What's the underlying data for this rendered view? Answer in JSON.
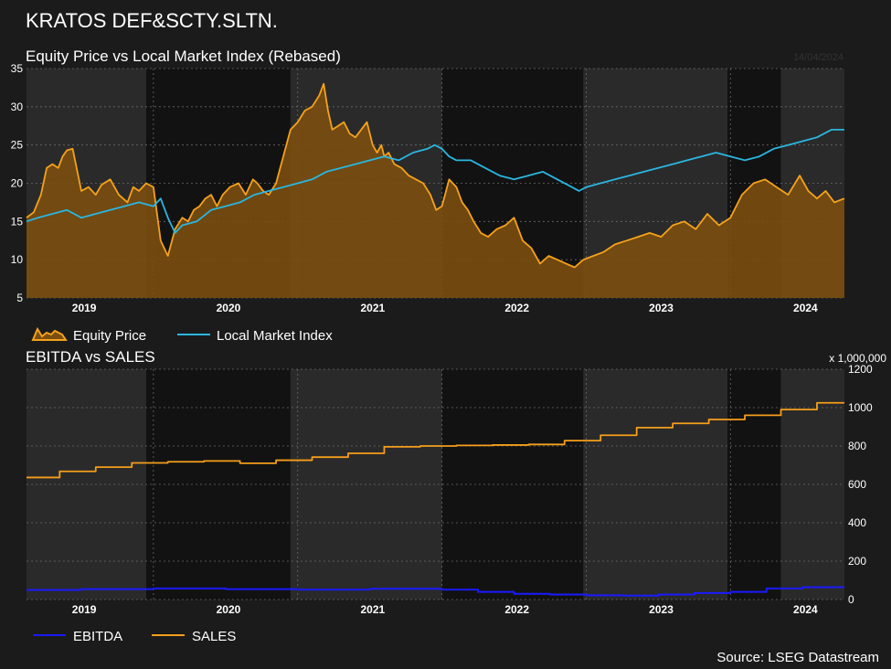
{
  "header": {
    "title": "KRATOS DEF&SCTY.SLTN.",
    "source": "Source: LSEG Datastream"
  },
  "colors": {
    "background": "#1b1b1b",
    "plot_dark": "#121212",
    "plot_light": "#2a2a2a",
    "equity_line": "#f5a21b",
    "equity_fill": "#7a4e10",
    "index_line": "#2ab6e0",
    "ebitda": "#1a1aff",
    "sales": "#f59e1b",
    "grid": "#6a6a6a"
  },
  "chart_data": [
    {
      "type": "area",
      "title": "Equity Price vs Local Market Index (Rebased)",
      "date_label": "14/04/2024",
      "ylim": [
        5,
        35
      ],
      "yticks": [
        5,
        10,
        15,
        20,
        25,
        30,
        35
      ],
      "xlim": [
        2018.62,
        2024.29
      ],
      "xticks": [
        {
          "label": "2019",
          "x": 2019.0
        },
        {
          "label": "2020",
          "x": 2020.0
        },
        {
          "label": "2021",
          "x": 2021.0
        },
        {
          "label": "2022",
          "x": 2022.0
        },
        {
          "label": "2023",
          "x": 2023.0
        },
        {
          "label": "2024",
          "x": 2024.0
        }
      ],
      "legend": [
        "Equity Price",
        "Local Market Index"
      ],
      "series": [
        {
          "name": "Equity Price",
          "x": [
            2018.62,
            2018.67,
            2018.72,
            2018.76,
            2018.8,
            2018.84,
            2018.87,
            2018.9,
            2018.94,
            2019.0,
            2019.05,
            2019.1,
            2019.14,
            2019.2,
            2019.26,
            2019.32,
            2019.36,
            2019.4,
            2019.45,
            2019.5,
            2019.55,
            2019.6,
            2019.65,
            2019.7,
            2019.74,
            2019.78,
            2019.82,
            2019.86,
            2019.9,
            2019.94,
            2019.98,
            2020.03,
            2020.09,
            2020.14,
            2020.19,
            2020.22,
            2020.26,
            2020.3,
            2020.35,
            2020.4,
            2020.45,
            2020.5,
            2020.55,
            2020.6,
            2020.65,
            2020.68,
            2020.71,
            2020.74,
            2020.78,
            2020.82,
            2020.86,
            2020.9,
            2020.94,
            2020.98,
            2021.02,
            2021.05,
            2021.08,
            2021.1,
            2021.13,
            2021.17,
            2021.22,
            2021.27,
            2021.32,
            2021.37,
            2021.42,
            2021.46,
            2021.5,
            2021.55,
            2021.6,
            2021.64,
            2021.68,
            2021.72,
            2021.77,
            2021.82,
            2021.88,
            2021.94,
            2022.0,
            2022.06,
            2022.12,
            2022.18,
            2022.24,
            2022.3,
            2022.36,
            2022.42,
            2022.48,
            2022.55,
            2022.62,
            2022.7,
            2022.78,
            2022.86,
            2022.94,
            2023.02,
            2023.1,
            2023.18,
            2023.26,
            2023.34,
            2023.42,
            2023.5,
            2023.58,
            2023.66,
            2023.74,
            2023.82,
            2023.9,
            2023.98,
            2024.04,
            2024.1,
            2024.16,
            2024.22,
            2024.29
          ],
          "values": [
            15.5,
            16.2,
            18.5,
            22.0,
            22.5,
            22.0,
            23.5,
            24.3,
            24.5,
            19.0,
            19.5,
            18.5,
            19.8,
            20.5,
            18.5,
            17.5,
            19.5,
            19.0,
            20.0,
            19.5,
            12.5,
            10.5,
            14.0,
            15.5,
            15.0,
            16.5,
            17.0,
            18.0,
            18.5,
            17.0,
            18.5,
            19.5,
            20.0,
            18.5,
            20.5,
            20.0,
            19.0,
            18.5,
            20.0,
            23.5,
            27.0,
            28.0,
            29.5,
            30.0,
            31.5,
            33.0,
            29.5,
            27.0,
            27.5,
            28.0,
            26.5,
            26.0,
            27.0,
            28.0,
            25.0,
            24.0,
            25.0,
            23.5,
            24.0,
            22.5,
            22.0,
            21.0,
            20.5,
            20.0,
            18.5,
            16.5,
            17.0,
            20.5,
            19.5,
            17.5,
            16.5,
            15.0,
            13.5,
            13.0,
            14.0,
            14.5,
            15.5,
            12.5,
            11.5,
            9.5,
            10.5,
            10.0,
            9.5,
            9.0,
            10.0,
            10.5,
            11.0,
            12.0,
            12.5,
            13.0,
            13.5,
            13.0,
            14.5,
            15.0,
            14.0,
            16.0,
            14.5,
            15.5,
            18.5,
            20.0,
            20.5,
            19.5,
            18.5,
            21.0,
            19.0,
            18.0,
            19.0,
            17.5,
            18.0
          ]
        },
        {
          "name": "Local Market Index",
          "x": [
            2018.62,
            2018.7,
            2018.8,
            2018.9,
            2019.0,
            2019.1,
            2019.2,
            2019.3,
            2019.4,
            2019.5,
            2019.55,
            2019.6,
            2019.65,
            2019.7,
            2019.8,
            2019.9,
            2020.0,
            2020.1,
            2020.2,
            2020.3,
            2020.4,
            2020.5,
            2020.6,
            2020.7,
            2020.8,
            2020.9,
            2021.0,
            2021.1,
            2021.2,
            2021.3,
            2021.4,
            2021.45,
            2021.5,
            2021.55,
            2021.6,
            2021.7,
            2021.8,
            2021.9,
            2022.0,
            2022.1,
            2022.2,
            2022.3,
            2022.4,
            2022.45,
            2022.5,
            2022.6,
            2022.7,
            2022.8,
            2022.9,
            2023.0,
            2023.1,
            2023.2,
            2023.3,
            2023.4,
            2023.5,
            2023.6,
            2023.7,
            2023.8,
            2023.9,
            2024.0,
            2024.1,
            2024.2,
            2024.29
          ],
          "values": [
            15.0,
            15.5,
            16.0,
            16.5,
            15.5,
            16.0,
            16.5,
            17.0,
            17.5,
            17.0,
            18.0,
            15.5,
            13.5,
            14.5,
            15.0,
            16.5,
            17.0,
            17.5,
            18.5,
            19.0,
            19.5,
            20.0,
            20.5,
            21.5,
            22.0,
            22.5,
            23.0,
            23.5,
            23.0,
            24.0,
            24.5,
            25.0,
            24.5,
            23.5,
            23.0,
            23.0,
            22.0,
            21.0,
            20.5,
            21.0,
            21.5,
            20.5,
            19.5,
            19.0,
            19.5,
            20.0,
            20.5,
            21.0,
            21.5,
            22.0,
            22.5,
            23.0,
            23.5,
            24.0,
            23.5,
            23.0,
            23.5,
            24.5,
            25.0,
            25.5,
            26.0,
            27.0,
            27.0
          ]
        }
      ]
    },
    {
      "type": "line",
      "title": "EBITDA vs SALES",
      "unit_label": "x 1,000,000",
      "ylim": [
        0,
        1200
      ],
      "yticks": [
        0,
        200,
        400,
        600,
        800,
        1000,
        1200
      ],
      "xlim": [
        2018.62,
        2024.29
      ],
      "xticks": [
        {
          "label": "2019",
          "x": 2019.0
        },
        {
          "label": "2020",
          "x": 2020.0
        },
        {
          "label": "2021",
          "x": 2021.0
        },
        {
          "label": "2022",
          "x": 2022.0
        },
        {
          "label": "2023",
          "x": 2023.0
        },
        {
          "label": "2024",
          "x": 2024.0
        }
      ],
      "legend": [
        "EBITDA",
        "SALES"
      ],
      "series": [
        {
          "name": "SALES",
          "step": true,
          "x": [
            2018.62,
            2018.85,
            2019.1,
            2019.35,
            2019.6,
            2019.85,
            2020.1,
            2020.35,
            2020.6,
            2020.85,
            2021.1,
            2021.35,
            2021.6,
            2021.85,
            2022.1,
            2022.35,
            2022.6,
            2022.85,
            2023.1,
            2023.35,
            2023.6,
            2023.85,
            2024.1,
            2024.29
          ],
          "values": [
            636,
            668,
            690,
            712,
            718,
            722,
            710,
            726,
            742,
            762,
            796,
            800,
            803,
            805,
            808,
            828,
            856,
            896,
            918,
            938,
            960,
            990,
            1025,
            1025
          ]
        },
        {
          "name": "EBITDA",
          "step": true,
          "x": [
            2018.62,
            2019.0,
            2019.5,
            2020.0,
            2020.5,
            2021.0,
            2021.5,
            2021.75,
            2022.0,
            2022.25,
            2022.5,
            2022.75,
            2023.0,
            2023.25,
            2023.5,
            2023.75,
            2024.0,
            2024.29
          ],
          "values": [
            50,
            54,
            58,
            54,
            52,
            56,
            52,
            40,
            30,
            26,
            22,
            20,
            26,
            34,
            40,
            58,
            64,
            64
          ]
        }
      ]
    }
  ]
}
